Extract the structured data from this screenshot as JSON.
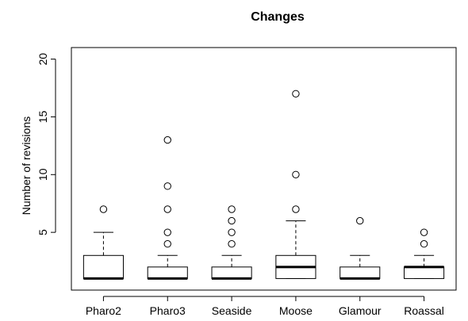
{
  "chart_data": {
    "type": "boxplot",
    "title": "Changes",
    "ylabel": "Number of revisions",
    "xlabel": "",
    "ylim": [
      0,
      21
    ],
    "yticks": [
      5,
      10,
      15,
      20
    ],
    "grid": false,
    "categories": [
      "Pharo2",
      "Pharo3",
      "Seaside",
      "Moose",
      "Glamour",
      "Roassal"
    ],
    "boxes": [
      {
        "category": "Pharo2",
        "min": 1,
        "q1": 1,
        "median": 1,
        "q3": 3,
        "max": 5,
        "outliers": [
          7
        ]
      },
      {
        "category": "Pharo3",
        "min": 1,
        "q1": 1,
        "median": 1,
        "q3": 2,
        "max": 3,
        "outliers": [
          4,
          5,
          7,
          9,
          13
        ]
      },
      {
        "category": "Seaside",
        "min": 1,
        "q1": 1,
        "median": 1,
        "q3": 2,
        "max": 3,
        "outliers": [
          4,
          5,
          6,
          7
        ]
      },
      {
        "category": "Moose",
        "min": 1,
        "q1": 1,
        "median": 2,
        "q3": 3,
        "max": 6,
        "outliers": [
          7,
          10,
          17
        ]
      },
      {
        "category": "Glamour",
        "min": 1,
        "q1": 1,
        "median": 1,
        "q3": 2,
        "max": 3,
        "outliers": [
          6
        ]
      },
      {
        "category": "Roassal",
        "min": 1,
        "q1": 1,
        "median": 2,
        "q3": 2,
        "max": 3,
        "outliers": [
          4,
          5
        ]
      }
    ]
  }
}
